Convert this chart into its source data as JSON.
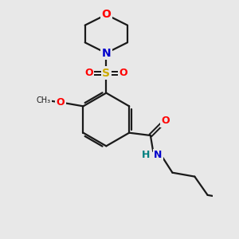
{
  "background_color": "#e8e8e8",
  "bond_color": "#1a1a1a",
  "oxygen_color": "#ff0000",
  "nitrogen_color": "#0000cc",
  "sulfur_color": "#ccaa00",
  "nh_color": "#008080",
  "line_width": 1.6,
  "figsize": [
    3.0,
    3.0
  ],
  "dpi": 100,
  "xlim": [
    -1.5,
    5.5
  ],
  "ylim": [
    -4.5,
    4.5
  ]
}
